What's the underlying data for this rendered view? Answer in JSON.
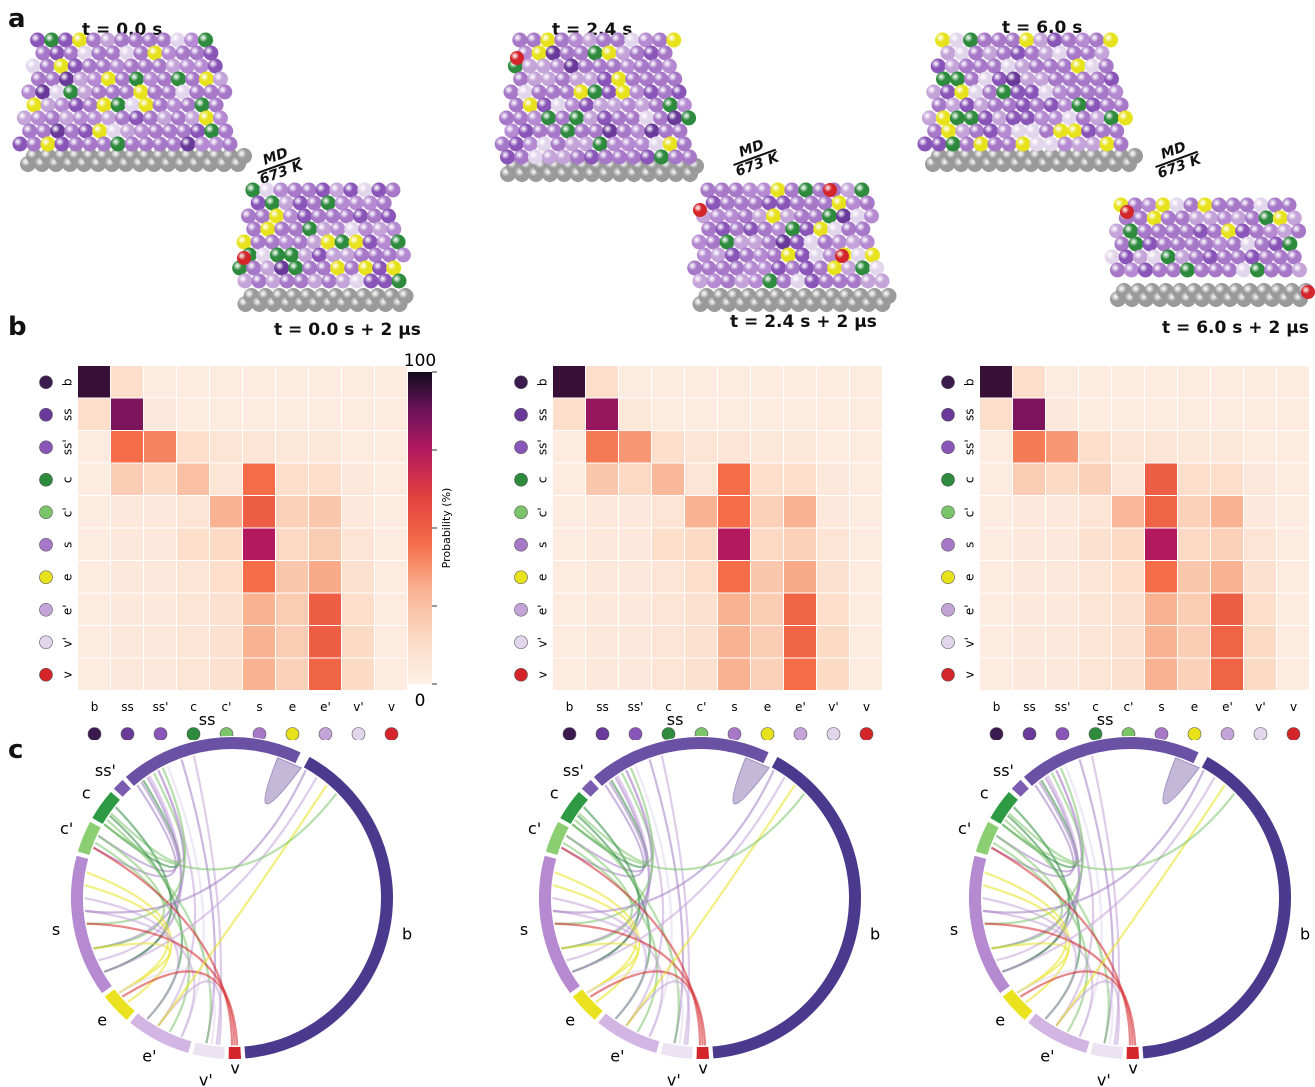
{
  "panels": {
    "a": "a",
    "b": "b",
    "c": "c"
  },
  "md_label": {
    "line1": "MD",
    "line2": "673 K"
  },
  "snapshots": [
    {
      "t_before": "t = 0.0 s",
      "t_after": "t = 0.0 s + 2 μs"
    },
    {
      "t_before": "t = 2.4 s",
      "t_after": "t = 2.4 s + 2 μs"
    },
    {
      "t_before": "t = 6.0 s",
      "t_after": "t = 6.0 s + 2 μs"
    }
  ],
  "site_types": [
    {
      "label": "b",
      "color": "#3b1a4f"
    },
    {
      "label": "ss",
      "color": "#6a3a9a"
    },
    {
      "label": "ss'",
      "color": "#8a55b8"
    },
    {
      "label": "c",
      "color": "#2e8b3e"
    },
    {
      "label": "c'",
      "color": "#7cc46a"
    },
    {
      "label": "s",
      "color": "#a778c8"
    },
    {
      "label": "e",
      "color": "#e7e21c"
    },
    {
      "label": "e'",
      "color": "#c4a3d8"
    },
    {
      "label": "v'",
      "color": "#e2d6ec"
    },
    {
      "label": "v",
      "color": "#d4252a"
    }
  ],
  "colorbar": {
    "label": "Probability (%)",
    "max_label": "100",
    "min_label": "0",
    "range": [
      0,
      100
    ]
  },
  "chart_data": [
    {
      "type": "heatmap",
      "x_categories": [
        "b",
        "ss",
        "ss'",
        "c",
        "c'",
        "s",
        "e",
        "e'",
        "v'",
        "v"
      ],
      "y_categories": [
        "b",
        "ss",
        "ss'",
        "c",
        "c'",
        "s",
        "e",
        "e'",
        "v'",
        "v"
      ],
      "values": [
        [
          95,
          12,
          3,
          3,
          3,
          3,
          3,
          3,
          3,
          3
        ],
        [
          12,
          85,
          5,
          3,
          3,
          3,
          3,
          3,
          3,
          3
        ],
        [
          3,
          45,
          40,
          12,
          8,
          8,
          6,
          6,
          3,
          3
        ],
        [
          3,
          20,
          14,
          25,
          8,
          45,
          12,
          12,
          5,
          3
        ],
        [
          3,
          5,
          5,
          8,
          30,
          50,
          18,
          22,
          5,
          3
        ],
        [
          3,
          5,
          5,
          12,
          14,
          75,
          15,
          20,
          8,
          3
        ],
        [
          3,
          5,
          5,
          8,
          12,
          45,
          22,
          32,
          10,
          3
        ],
        [
          3,
          5,
          5,
          8,
          10,
          30,
          20,
          50,
          12,
          3
        ],
        [
          3,
          5,
          5,
          8,
          10,
          30,
          20,
          50,
          14,
          3
        ],
        [
          3,
          5,
          5,
          8,
          10,
          30,
          18,
          48,
          14,
          3
        ]
      ],
      "zlim": [
        0,
        100
      ]
    },
    {
      "type": "heatmap",
      "x_categories": [
        "b",
        "ss",
        "ss'",
        "c",
        "c'",
        "s",
        "e",
        "e'",
        "v'",
        "v"
      ],
      "y_categories": [
        "b",
        "ss",
        "ss'",
        "c",
        "c'",
        "s",
        "e",
        "e'",
        "v'",
        "v"
      ],
      "values": [
        [
          95,
          12,
          3,
          3,
          3,
          3,
          3,
          3,
          3,
          3
        ],
        [
          12,
          80,
          6,
          3,
          3,
          3,
          3,
          3,
          3,
          3
        ],
        [
          3,
          42,
          36,
          12,
          8,
          8,
          6,
          6,
          3,
          3
        ],
        [
          3,
          22,
          15,
          28,
          8,
          45,
          12,
          12,
          5,
          3
        ],
        [
          3,
          5,
          5,
          8,
          30,
          45,
          18,
          30,
          5,
          3
        ],
        [
          3,
          5,
          5,
          12,
          14,
          75,
          15,
          18,
          8,
          3
        ],
        [
          3,
          5,
          5,
          8,
          12,
          45,
          22,
          32,
          10,
          3
        ],
        [
          3,
          5,
          5,
          8,
          10,
          30,
          20,
          48,
          12,
          3
        ],
        [
          3,
          5,
          5,
          8,
          10,
          30,
          20,
          48,
          14,
          3
        ],
        [
          3,
          5,
          5,
          8,
          10,
          30,
          18,
          45,
          14,
          3
        ]
      ],
      "zlim": [
        0,
        100
      ]
    },
    {
      "type": "heatmap",
      "x_categories": [
        "b",
        "ss",
        "ss'",
        "c",
        "c'",
        "s",
        "e",
        "e'",
        "v'",
        "v"
      ],
      "y_categories": [
        "b",
        "ss",
        "ss'",
        "c",
        "c'",
        "s",
        "e",
        "e'",
        "v'",
        "v"
      ],
      "values": [
        [
          95,
          12,
          3,
          3,
          3,
          3,
          3,
          3,
          3,
          3
        ],
        [
          12,
          85,
          5,
          3,
          3,
          3,
          3,
          3,
          3,
          3
        ],
        [
          3,
          42,
          36,
          12,
          8,
          8,
          6,
          6,
          3,
          3
        ],
        [
          3,
          20,
          14,
          18,
          8,
          50,
          12,
          12,
          5,
          3
        ],
        [
          3,
          5,
          5,
          8,
          28,
          48,
          18,
          30,
          5,
          3
        ],
        [
          3,
          5,
          5,
          10,
          14,
          75,
          15,
          18,
          8,
          3
        ],
        [
          3,
          5,
          5,
          8,
          12,
          45,
          22,
          30,
          10,
          3
        ],
        [
          3,
          5,
          5,
          8,
          10,
          30,
          20,
          50,
          12,
          3
        ],
        [
          3,
          5,
          5,
          8,
          10,
          30,
          20,
          48,
          14,
          3
        ],
        [
          3,
          5,
          5,
          8,
          10,
          30,
          18,
          48,
          14,
          3
        ]
      ],
      "zlim": [
        0,
        100
      ]
    }
  ],
  "chord": {
    "arcs": [
      {
        "label": "b",
        "start": -62,
        "end": 86
      },
      {
        "label": "v",
        "start": 86,
        "end": 92
      },
      {
        "label": "v'",
        "start": 92,
        "end": 105
      },
      {
        "label": "e'",
        "start": 105,
        "end": 130
      },
      {
        "label": "e",
        "start": 130,
        "end": 143
      },
      {
        "label": "s",
        "start": 143,
        "end": 196
      },
      {
        "label": "c'",
        "start": 196,
        "end": 209
      },
      {
        "label": "c",
        "start": 209,
        "end": 222
      },
      {
        "label": "ss'",
        "start": 222,
        "end": 228
      },
      {
        "label": "ss",
        "start": 228,
        "end": 296
      }
    ],
    "chords": [
      {
        "from": 296,
        "to": 295,
        "ribbon": 22,
        "color": "#7a62a8"
      },
      {
        "from": 230,
        "to": 200,
        "color": "#a27bc4"
      },
      {
        "from": 232,
        "to": 205,
        "color": "#a27bc4"
      },
      {
        "from": 233,
        "to": 210,
        "color": "#2e8b3e"
      },
      {
        "from": 235,
        "to": 150,
        "color": "#a27bc4"
      },
      {
        "from": 236,
        "to": 155,
        "color": "#c4a3d8"
      },
      {
        "from": 238,
        "to": 215,
        "color": "#7cc46a"
      },
      {
        "from": 240,
        "to": 160,
        "color": "#a27bc4"
      },
      {
        "from": 240,
        "to": 120,
        "color": "#c4a3d8"
      },
      {
        "from": 242,
        "to": 170,
        "color": "#7cc46a"
      },
      {
        "from": 244,
        "to": 110,
        "color": "#e2d6ec"
      },
      {
        "from": 250,
        "to": 100,
        "color": "#a27bc4"
      },
      {
        "from": 255,
        "to": 96,
        "color": "#c4a3d8"
      },
      {
        "from": 218,
        "to": 150,
        "color": "#2e8b3e"
      },
      {
        "from": 214,
        "to": 125,
        "color": "#2e8b3e"
      },
      {
        "from": 212,
        "to": 100,
        "color": "#7cc46a"
      },
      {
        "from": 205,
        "to": 160,
        "color": "#7cc46a"
      },
      {
        "from": 202,
        "to": 115,
        "color": "#7cc46a"
      },
      {
        "from": 200,
        "to": 90,
        "color": "#d4252a"
      },
      {
        "from": 190,
        "to": 135,
        "color": "#e7e21c"
      },
      {
        "from": 185,
        "to": 140,
        "color": "#e7e21c"
      },
      {
        "from": 180,
        "to": 125,
        "color": "#c4a3d8"
      },
      {
        "from": 175,
        "to": 110,
        "color": "#c4a3d8"
      },
      {
        "from": 170,
        "to": 88,
        "color": "#d4252a"
      },
      {
        "from": 160,
        "to": 140,
        "color": "#e7e21c"
      },
      {
        "from": 140,
        "to": 98,
        "color": "#e2d6ec"
      },
      {
        "from": 138,
        "to": 89,
        "color": "#d4252a"
      },
      {
        "from": 120,
        "to": 95,
        "color": "#c4a3d8"
      },
      {
        "from": 300,
        "to": 175,
        "color": "#a27bc4"
      },
      {
        "from": 305,
        "to": 150,
        "color": "#c4a3d8"
      },
      {
        "from": 310,
        "to": 120,
        "color": "#e7e21c"
      },
      {
        "from": 315,
        "to": 210,
        "color": "#7cc46a"
      }
    ]
  }
}
